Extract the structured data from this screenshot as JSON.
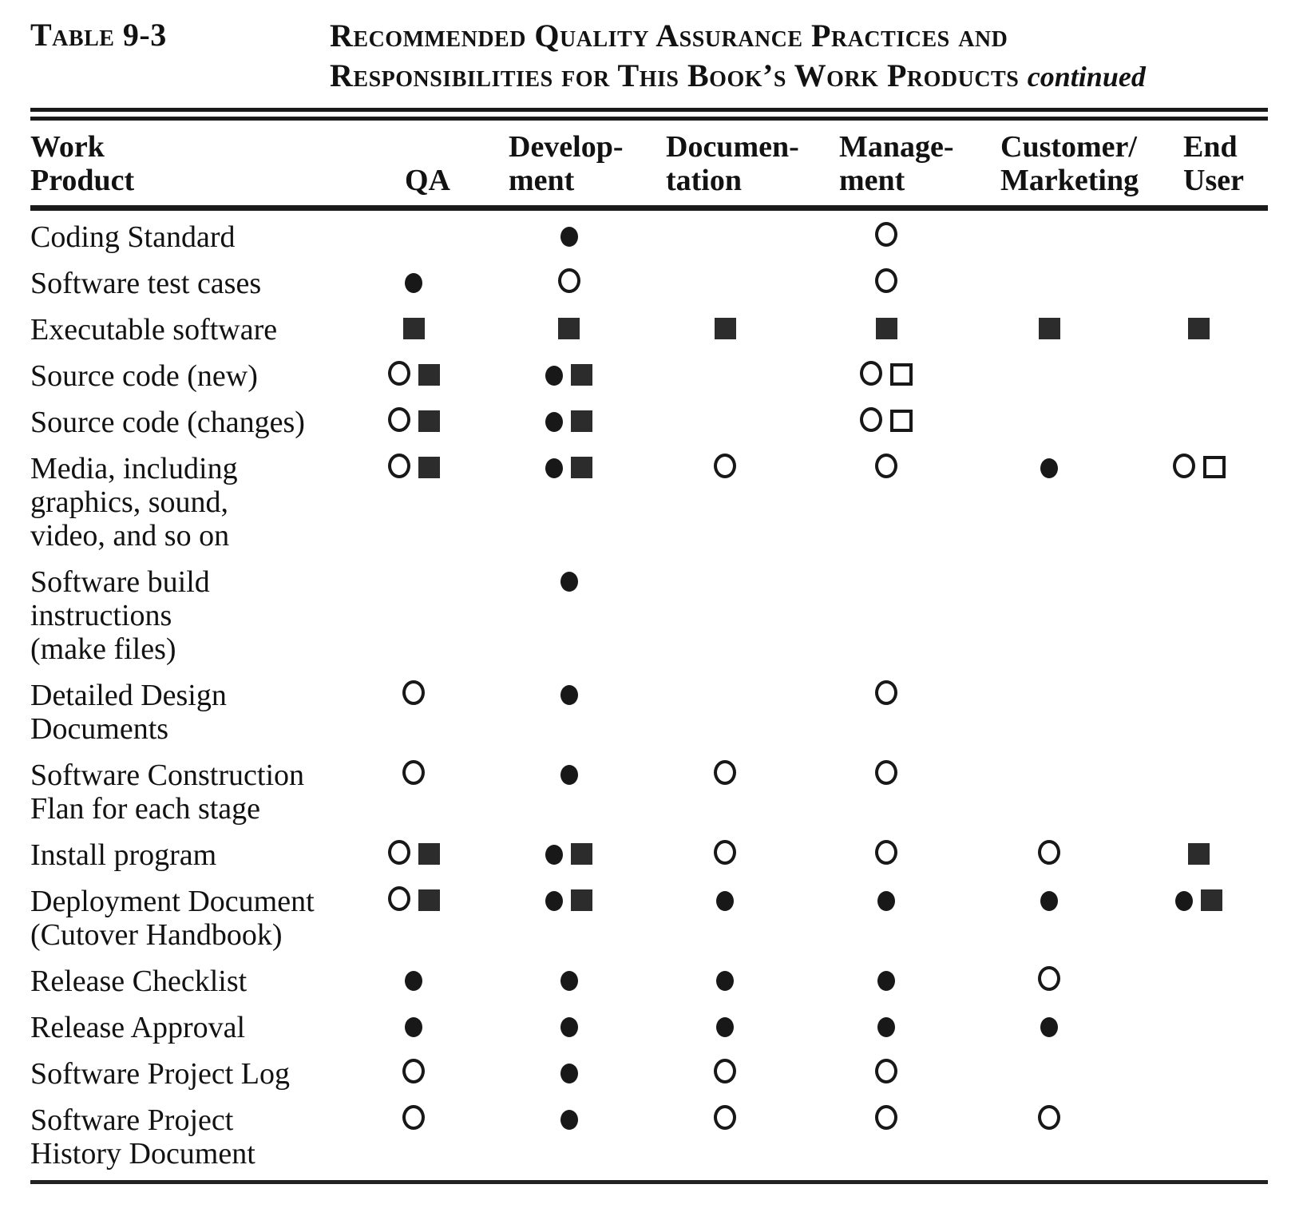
{
  "caption": {
    "label": "Table 9-3",
    "title_line1": "Recommended Quality Assurance Practices and",
    "title_line2": "Responsibilities for This Book’s Work Products",
    "continued": "continued"
  },
  "table": {
    "columns": [
      {
        "id": "work-product",
        "lines": [
          "Work",
          "Product"
        ]
      },
      {
        "id": "qa",
        "lines": [
          "QA"
        ]
      },
      {
        "id": "development",
        "lines": [
          "Develop-",
          "ment"
        ]
      },
      {
        "id": "documentation",
        "lines": [
          "Documen-",
          "tation"
        ]
      },
      {
        "id": "management",
        "lines": [
          "Manage-",
          "ment"
        ]
      },
      {
        "id": "customer-marketing",
        "lines": [
          "Customer/",
          "Marketing"
        ]
      },
      {
        "id": "end-user",
        "lines": [
          "End",
          "User"
        ]
      }
    ],
    "symbol_glyphs": {
      "filled-circle": "●",
      "open-circle": "○",
      "filled-square": "■",
      "open-square": "□"
    },
    "rows": [
      {
        "product_lines": [
          "Coding Standard"
        ],
        "cells": [
          [],
          [
            "filled-circle"
          ],
          [],
          [
            "open-circle"
          ],
          [],
          []
        ]
      },
      {
        "product_lines": [
          "Software test cases"
        ],
        "cells": [
          [
            "filled-circle"
          ],
          [
            "open-circle"
          ],
          [],
          [
            "open-circle"
          ],
          [],
          []
        ]
      },
      {
        "product_lines": [
          "Executable software"
        ],
        "cells": [
          [
            "filled-square"
          ],
          [
            "filled-square"
          ],
          [
            "filled-square"
          ],
          [
            "filled-square"
          ],
          [
            "filled-square"
          ],
          [
            "filled-square"
          ]
        ]
      },
      {
        "product_lines": [
          "Source code (new)"
        ],
        "cells": [
          [
            "open-circle",
            "filled-square"
          ],
          [
            "filled-circle",
            "filled-square"
          ],
          [],
          [
            "open-circle",
            "open-square"
          ],
          [],
          []
        ]
      },
      {
        "product_lines": [
          "Source code (changes)"
        ],
        "cells": [
          [
            "open-circle",
            "filled-square"
          ],
          [
            "filled-circle",
            "filled-square"
          ],
          [],
          [
            "open-circle",
            "open-square"
          ],
          [],
          []
        ]
      },
      {
        "product_lines": [
          "Media, including",
          "graphics, sound,",
          "video, and so on"
        ],
        "cells": [
          [
            "open-circle",
            "filled-square"
          ],
          [
            "filled-circle",
            "filled-square"
          ],
          [
            "open-circle"
          ],
          [
            "open-circle"
          ],
          [
            "filled-circle"
          ],
          [
            "open-circle",
            "open-square"
          ]
        ]
      },
      {
        "product_lines": [
          "Software  build",
          "instructions",
          "(make files)"
        ],
        "cells": [
          [],
          [
            "filled-circle"
          ],
          [],
          [],
          [],
          []
        ]
      },
      {
        "product_lines": [
          "Detailed Design",
          "Documents"
        ],
        "cells": [
          [
            "open-circle"
          ],
          [
            "filled-circle"
          ],
          [],
          [
            "open-circle"
          ],
          [],
          []
        ]
      },
      {
        "product_lines": [
          "Software  Construction",
          "Flan for each stage"
        ],
        "cells": [
          [
            "open-circle"
          ],
          [
            "filled-circle"
          ],
          [
            "open-circle"
          ],
          [
            "open-circle"
          ],
          [],
          []
        ]
      },
      {
        "product_lines": [
          "Install program"
        ],
        "cells": [
          [
            "open-circle",
            "filled-square"
          ],
          [
            "filled-circle",
            "filled-square"
          ],
          [
            "open-circle"
          ],
          [
            "open-circle"
          ],
          [
            "open-circle"
          ],
          [
            "filled-square"
          ]
        ]
      },
      {
        "product_lines": [
          "Deployment Document",
          "(Cutover  Handbook)"
        ],
        "cells": [
          [
            "open-circle",
            "filled-square"
          ],
          [
            "filled-circle",
            "filled-square"
          ],
          [
            "filled-circle"
          ],
          [
            "filled-circle"
          ],
          [
            "filled-circle"
          ],
          [
            "filled-circle",
            "filled-square"
          ]
        ]
      },
      {
        "product_lines": [
          "Release  Checklist"
        ],
        "cells": [
          [
            "filled-circle"
          ],
          [
            "filled-circle"
          ],
          [
            "filled-circle"
          ],
          [
            "filled-circle"
          ],
          [
            "open-circle"
          ],
          []
        ]
      },
      {
        "product_lines": [
          "Release  Approval"
        ],
        "cells": [
          [
            "filled-circle"
          ],
          [
            "filled-circle"
          ],
          [
            "filled-circle"
          ],
          [
            "filled-circle"
          ],
          [
            "filled-circle"
          ],
          []
        ]
      },
      {
        "product_lines": [
          "Software Project Log"
        ],
        "cells": [
          [
            "open-circle"
          ],
          [
            "filled-circle"
          ],
          [
            "open-circle"
          ],
          [
            "open-circle"
          ],
          [],
          []
        ]
      },
      {
        "product_lines": [
          "Software Project",
          "History Document"
        ],
        "cells": [
          [
            "open-circle"
          ],
          [
            "filled-circle"
          ],
          [
            "open-circle"
          ],
          [
            "open-circle"
          ],
          [
            "open-circle"
          ],
          []
        ]
      }
    ]
  }
}
